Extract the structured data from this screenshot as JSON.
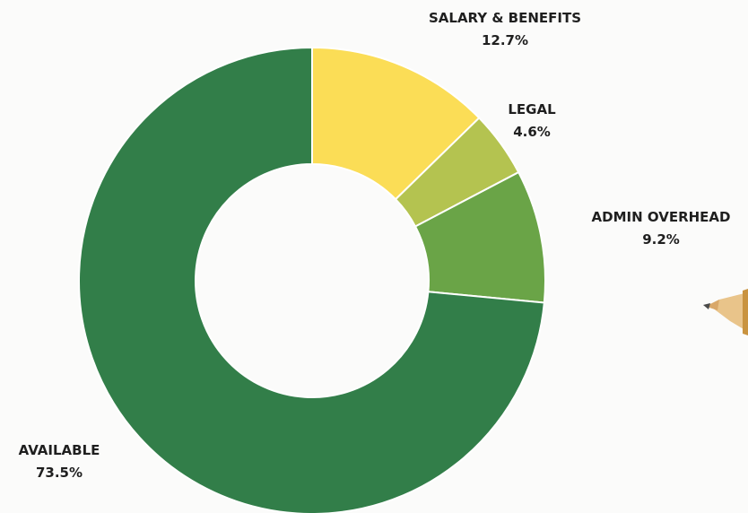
{
  "chart_data": {
    "type": "pie",
    "variant": "donut",
    "slices": [
      {
        "label": "SALARY & BENEFITS",
        "value": 12.7,
        "display": "12.7%",
        "color": "#fbdd56"
      },
      {
        "label": "LEGAL",
        "value": 4.6,
        "display": "4.6%",
        "color": "#b4c350"
      },
      {
        "label": "ADMIN OVERHEAD",
        "value": 9.2,
        "display": "9.2%",
        "color": "#6aa447"
      },
      {
        "label": "AVAILABLE",
        "value": 73.5,
        "display": "73.5%",
        "color": "#327e49"
      }
    ]
  },
  "background_color": "#fbfbfa",
  "decoration": {
    "icon": "pencil-icon"
  }
}
